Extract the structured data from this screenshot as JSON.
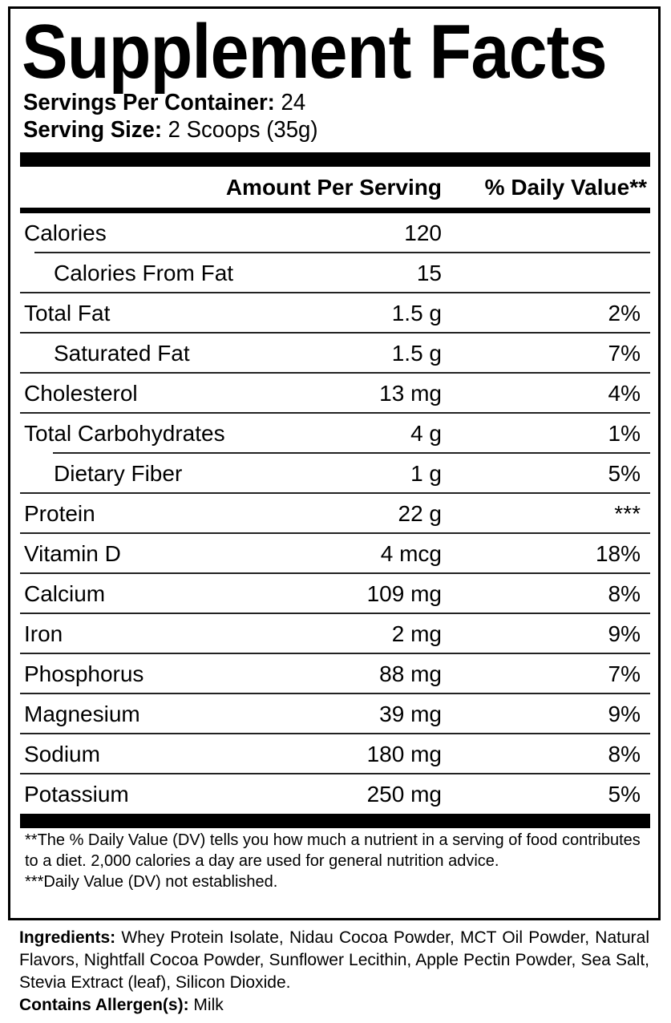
{
  "title": "Supplement Facts",
  "servings_per_container": {
    "label": "Servings Per Container:",
    "value": "24"
  },
  "serving_size": {
    "label": "Serving Size:",
    "value": "2 Scoops (35g)"
  },
  "header": {
    "amount": "Amount Per Serving",
    "dv": "% Daily Value**"
  },
  "rows": [
    {
      "name": "Calories",
      "amount": "120",
      "dv": "",
      "indent": false
    },
    {
      "name": "Calories From Fat",
      "amount": "15",
      "dv": "",
      "indent": true
    },
    {
      "name": "Total Fat",
      "amount": "1.5 g",
      "dv": "2%",
      "indent": false
    },
    {
      "name": "Saturated Fat",
      "amount": "1.5 g",
      "dv": "7%",
      "indent": true
    },
    {
      "name": "Cholesterol",
      "amount": "13 mg",
      "dv": "4%",
      "indent": false
    },
    {
      "name": "Total Carbohydrates",
      "amount": "4 g",
      "dv": "1%",
      "indent": false
    },
    {
      "name": "Dietary Fiber",
      "amount": "1 g",
      "dv": "5%",
      "indent": true
    },
    {
      "name": "Protein",
      "amount": "22 g",
      "dv": "***",
      "indent": false
    },
    {
      "name": "Vitamin D",
      "amount": "4 mcg",
      "dv": "18%",
      "indent": false
    },
    {
      "name": "Calcium",
      "amount": "109 mg",
      "dv": "8%",
      "indent": false
    },
    {
      "name": "Iron",
      "amount": "2 mg",
      "dv": "9%",
      "indent": false
    },
    {
      "name": "Phosphorus",
      "amount": "88 mg",
      "dv": "7%",
      "indent": false
    },
    {
      "name": "Magnesium",
      "amount": "39 mg",
      "dv": "9%",
      "indent": false
    },
    {
      "name": "Sodium",
      "amount": "180 mg",
      "dv": "8%",
      "indent": false
    },
    {
      "name": "Potassium",
      "amount": "250 mg",
      "dv": "5%",
      "indent": false
    }
  ],
  "footnote_1": "**The % Daily Value (DV) tells you how much a nutrient in a serving of food contributes to a diet. 2,000 calories a day are used for general nutrition advice.",
  "footnote_2": "***Daily Value (DV) not established.",
  "ingredients": {
    "label": "Ingredients:",
    "text": " Whey Protein Isolate, Nidau Cocoa Powder, MCT Oil Powder, Natural Flavors, Nightfall Cocoa Powder, Sunflower Lecithin, Apple Pectin Powder, Sea Salt, Stevia Extract (leaf), Silicon Dioxide."
  },
  "allergens": {
    "label": "Contains Allergen(s):",
    "text": " Milk"
  }
}
